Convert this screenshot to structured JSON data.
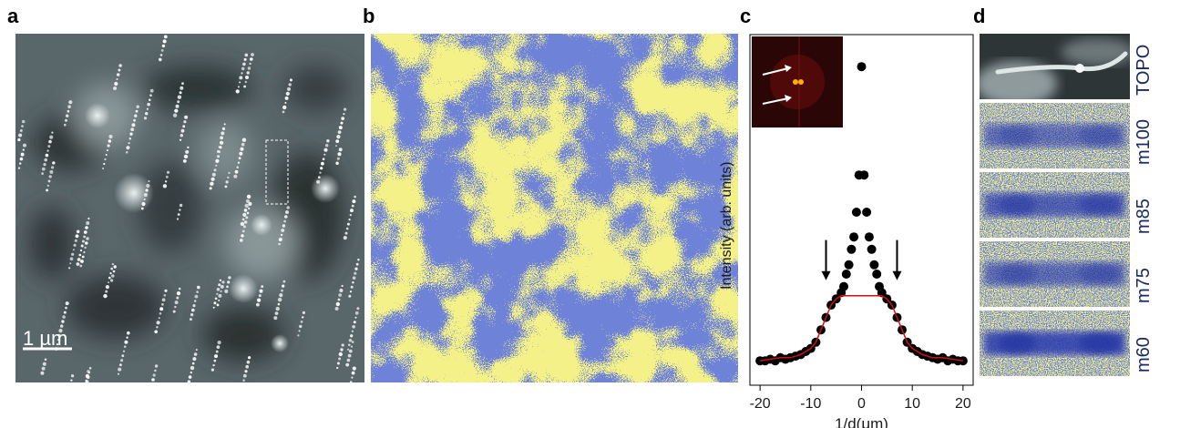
{
  "panels": {
    "a": {
      "letter": "a",
      "scale_bar_label": "1 µm"
    },
    "b": {
      "letter": "b"
    },
    "c": {
      "letter": "c"
    },
    "d": {
      "letter": "d",
      "strips": [
        "TOPO",
        "m100",
        "m85",
        "m75",
        "m60"
      ]
    }
  },
  "colors": {
    "yellow": "#e6e040",
    "blue": "#2a3bb0",
    "fit_line": "#cc1111",
    "label_navy": "#1a2a60"
  },
  "chart_data": {
    "type": "scatter",
    "xlabel": "1/d(μm)",
    "ylabel": "Intensity (arb. units)",
    "x_ticks": [
      -20,
      -10,
      0,
      10,
      20
    ],
    "x_tick_labels": [
      "-20",
      "-10",
      "0",
      "10",
      "20"
    ],
    "xlim": [
      -22,
      22
    ],
    "ylim": [
      0,
      1.0
    ],
    "series": [
      {
        "kind": "points",
        "x": [
          -20,
          -19,
          -18,
          -17,
          -16,
          -15,
          -14,
          -13,
          -12,
          -11,
          -10,
          -9,
          -8,
          -7,
          -6,
          -5,
          -4,
          -3.5,
          -3,
          -2.5,
          -2,
          -1.5,
          -1,
          -0.5,
          0,
          0.5,
          1,
          1.5,
          2,
          2.5,
          3,
          3.5,
          4,
          5,
          6,
          7,
          8,
          9,
          10,
          11,
          12,
          13,
          14,
          15,
          16,
          17,
          18,
          19,
          20
        ],
        "y": [
          0.02,
          0.02,
          0.025,
          0.02,
          0.03,
          0.025,
          0.03,
          0.035,
          0.04,
          0.05,
          0.06,
          0.08,
          0.12,
          0.16,
          0.2,
          0.22,
          0.24,
          0.26,
          0.3,
          0.33,
          0.38,
          0.42,
          0.5,
          0.62,
          0.97,
          0.62,
          0.5,
          0.42,
          0.38,
          0.33,
          0.3,
          0.26,
          0.24,
          0.22,
          0.2,
          0.16,
          0.12,
          0.08,
          0.06,
          0.05,
          0.04,
          0.035,
          0.03,
          0.025,
          0.03,
          0.02,
          0.025,
          0.02,
          0.02
        ]
      },
      {
        "kind": "fit",
        "x": [
          -20,
          -18,
          -16,
          -14,
          -12,
          -11,
          -10,
          -9,
          -8,
          -7,
          -6,
          -5,
          -4,
          -3,
          3,
          4,
          5,
          6,
          7,
          8,
          9,
          10,
          11,
          12,
          14,
          16,
          18,
          20
        ],
        "y": [
          0.02,
          0.025,
          0.03,
          0.03,
          0.04,
          0.05,
          0.06,
          0.08,
          0.12,
          0.16,
          0.2,
          0.22,
          0.23,
          0.23,
          0.23,
          0.23,
          0.22,
          0.2,
          0.16,
          0.12,
          0.08,
          0.06,
          0.05,
          0.04,
          0.03,
          0.03,
          0.025,
          0.02
        ]
      }
    ],
    "annotations": [
      {
        "type": "arrow-down",
        "x": -7,
        "y_from": 0.41,
        "y_to": 0.28
      },
      {
        "type": "arrow-down",
        "x": 7,
        "y_from": 0.41,
        "y_to": 0.28
      }
    ]
  }
}
